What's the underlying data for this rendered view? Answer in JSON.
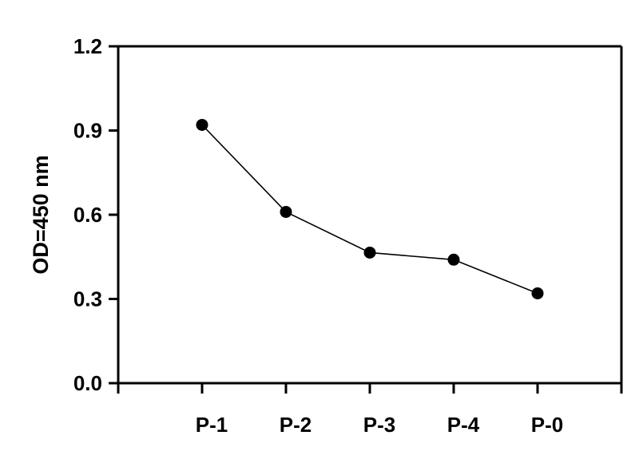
{
  "chart_data": {
    "type": "line",
    "title": "",
    "xlabel": "",
    "ylabel": "OD=450 nm",
    "categories": [
      "P-1",
      "P-2",
      "P-3",
      "P-4",
      "P-0"
    ],
    "series": [
      {
        "values": [
          0.92,
          0.61,
          0.465,
          0.44,
          0.32
        ]
      }
    ],
    "ylim": [
      0,
      1.2
    ],
    "yticks": [
      "0.0",
      "0.3",
      "0.6",
      "0.9",
      "1.2"
    ],
    "grid": false,
    "legend": "none",
    "colors": {
      "line": "#000000",
      "marker": "#000000",
      "axis": "#000000"
    }
  }
}
